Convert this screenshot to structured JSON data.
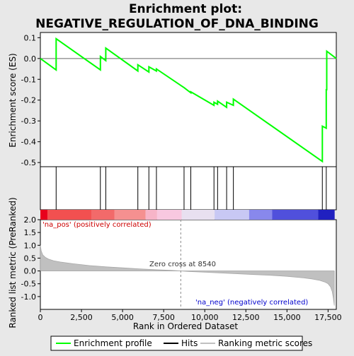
{
  "chart_data": {
    "type": "line",
    "title_line1": "Enrichment plot:",
    "title_line2": "NEGATIVE_REGULATION_OF_DNA_BINDING",
    "top_panel": {
      "ylabel": "Enrichment score (ES)",
      "ylim": [
        -0.52,
        0.125
      ],
      "yticks": [
        "0.1",
        "0.0",
        "-0.1",
        "-0.2",
        "-0.3",
        "-0.4",
        "-0.5"
      ],
      "ytick_values": [
        0.1,
        0.0,
        -0.1,
        -0.2,
        -0.3,
        -0.4,
        -0.5
      ],
      "series": [
        {
          "name": "Enrichment profile",
          "color": "#00ff00",
          "x": [
            0,
            960,
            960,
            3650,
            3650,
            3980,
            3980,
            5930,
            5930,
            6600,
            6600,
            7060,
            7060,
            8740,
            9150,
            9150,
            10560,
            10560,
            10780,
            10780,
            11330,
            11330,
            11740,
            11740,
            17150,
            17150,
            17390,
            17390,
            17420,
            17420,
            18000
          ],
          "y": [
            0.0,
            -0.055,
            0.095,
            -0.055,
            0.01,
            -0.01,
            0.05,
            -0.06,
            -0.03,
            -0.065,
            -0.04,
            -0.06,
            -0.05,
            -0.14,
            -0.165,
            -0.16,
            -0.225,
            -0.21,
            -0.22,
            -0.205,
            -0.235,
            -0.21,
            -0.225,
            -0.195,
            -0.495,
            -0.325,
            -0.335,
            -0.15,
            -0.15,
            0.035,
            0.0
          ]
        }
      ]
    },
    "hits": {
      "x": [
        960,
        3650,
        3980,
        5930,
        6600,
        7060,
        8740,
        9150,
        10560,
        10780,
        11330,
        11740,
        17150,
        17390
      ]
    },
    "color_bar": {
      "segments": [
        {
          "from": 0,
          "to": 430,
          "color": "#e8001c"
        },
        {
          "from": 430,
          "to": 3100,
          "color": "#f25050"
        },
        {
          "from": 3100,
          "to": 4500,
          "color": "#f26a6a"
        },
        {
          "from": 4500,
          "to": 6400,
          "color": "#f59090"
        },
        {
          "from": 6400,
          "to": 7100,
          "color": "#f7b4c8"
        },
        {
          "from": 7100,
          "to": 8600,
          "color": "#f8c8e0"
        },
        {
          "from": 8600,
          "to": 10600,
          "color": "#e8e0f0"
        },
        {
          "from": 10600,
          "to": 12700,
          "color": "#c8c8f4"
        },
        {
          "from": 12700,
          "to": 14100,
          "color": "#8888ec"
        },
        {
          "from": 14100,
          "to": 16900,
          "color": "#5050dc"
        },
        {
          "from": 16900,
          "to": 17900,
          "color": "#2020c0"
        }
      ]
    },
    "bottom_panel": {
      "ylabel": "Ranked list metric (PreRanked)",
      "xlabel": "Rank in Ordered Dataset",
      "ylim": [
        -1.5,
        2.0
      ],
      "yticks": [
        "2.0",
        "1.5",
        "1.0",
        "0.5",
        "0.0",
        "-0.5",
        "-1.0"
      ],
      "ytick_values": [
        2.0,
        1.5,
        1.0,
        0.5,
        0.0,
        -0.5,
        -1.0
      ],
      "xlim": [
        0,
        18000
      ],
      "xticks": [
        "0",
        "2,500",
        "5,000",
        "7,500",
        "10,000",
        "12,500",
        "15,000",
        "17,500"
      ],
      "xtick_values": [
        0,
        2500,
        5000,
        7500,
        10000,
        12500,
        15000,
        17500
      ],
      "zero_cross_x": 8540,
      "zero_cross_label": "Zero cross at 8540",
      "pos_label": "'na_pos' (positively correlated)",
      "neg_label": "'na_neg' (negatively correlated)",
      "metric_curve": {
        "x": [
          0,
          50,
          150,
          300,
          500,
          800,
          1200,
          2000,
          3000,
          4000,
          5000,
          6000,
          7000,
          8000,
          8540,
          9000,
          10000,
          11000,
          12000,
          13000,
          14000,
          15000,
          16000,
          16500,
          17000,
          17300,
          17500,
          17650,
          17750,
          17820,
          17880
        ],
        "y": [
          1.0,
          0.78,
          0.62,
          0.53,
          0.46,
          0.4,
          0.35,
          0.28,
          0.21,
          0.16,
          0.12,
          0.08,
          0.05,
          0.02,
          0.0,
          -0.02,
          -0.05,
          -0.08,
          -0.11,
          -0.14,
          -0.17,
          -0.21,
          -0.27,
          -0.31,
          -0.37,
          -0.43,
          -0.5,
          -0.62,
          -0.8,
          -1.05,
          -1.35
        ]
      }
    },
    "legend": [
      {
        "label": "Enrichment profile",
        "color": "#00ff00"
      },
      {
        "label": "Hits",
        "color": "#000000"
      },
      {
        "label": "Ranking metric scores",
        "color": "#c0c0c0"
      }
    ]
  }
}
